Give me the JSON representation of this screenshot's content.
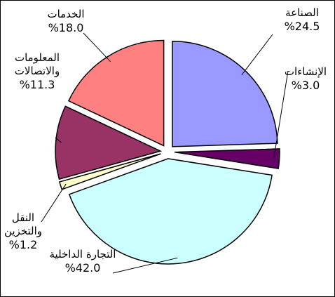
{
  "chart_data": {
    "type": "pie",
    "categories": [
      "الصناعة",
      "الإنشاءات",
      "التجارة الداخلية",
      "النقل والتخزين",
      "المعلومات والاتصالات",
      "الخدمات"
    ],
    "values": [
      24.5,
      3.0,
      42.0,
      1.2,
      11.3,
      18.0
    ],
    "value_labels": [
      "%24.5",
      "%3.0",
      "%42.0",
      "%1.2",
      "%11.3",
      "%18.0"
    ],
    "colors": [
      "#9999ff",
      "#660066",
      "#ccffff",
      "#ffffcc",
      "#993366",
      "#ff8080"
    ]
  }
}
